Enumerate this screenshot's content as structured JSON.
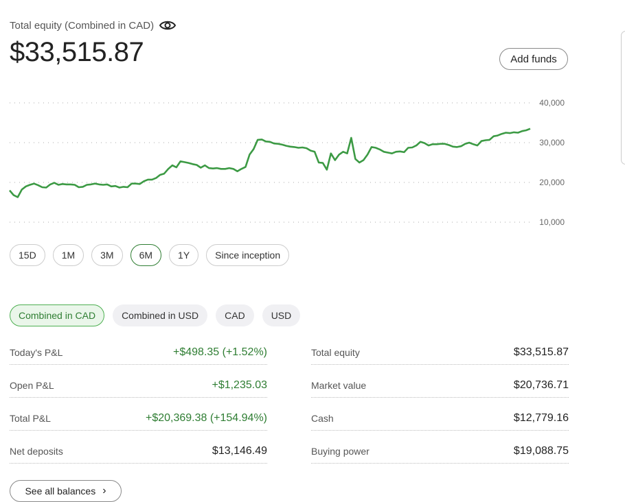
{
  "header": {
    "equity_label": "Total equity (Combined in CAD)",
    "equity_value": "$33,515.87",
    "eye_icon": "eye-icon",
    "add_funds_label": "Add funds"
  },
  "chart_data": {
    "type": "line",
    "series": [
      {
        "values": [
          18000,
          16800,
          16300,
          18200,
          19000,
          19400,
          19700,
          19300,
          18800,
          18700,
          19500,
          19900,
          19400,
          19600,
          19500,
          19500,
          19400,
          18800,
          18900,
          19400,
          19500,
          19700,
          19500,
          19400,
          19500,
          19000,
          19100,
          18700,
          18900,
          18800,
          19700,
          19700,
          19600,
          20300,
          20700,
          20700,
          21100,
          21900,
          22200,
          23400,
          24300,
          23800,
          25300,
          25100,
          24900,
          24600,
          24400,
          23700,
          24300,
          23600,
          23500,
          23600,
          23400,
          23400,
          23600,
          23400,
          22800,
          23400,
          23900,
          27000,
          28400,
          30700,
          30800,
          30300,
          30200,
          29800,
          29700,
          29500,
          29200,
          29000,
          28900,
          28700,
          28800,
          28600,
          28000,
          27700,
          25000,
          24900,
          23200,
          27300,
          25600,
          27000,
          27700,
          27300,
          31200,
          25900,
          25000,
          25600,
          27000,
          28900,
          28700,
          28300,
          27700,
          27500,
          27300,
          27700,
          27800,
          27600,
          28700,
          28800,
          29300,
          30200,
          29900,
          29300,
          29600,
          29600,
          29700,
          29700,
          29400,
          29000,
          28900,
          29100,
          29700,
          30000,
          29600,
          29300,
          30400,
          30600,
          30700,
          31600,
          31800,
          32200,
          32500,
          32400,
          32600,
          32500,
          32900,
          33100,
          33500
        ]
      }
    ],
    "yticks": [
      "40,000",
      "30,000",
      "20,000",
      "10,000"
    ],
    "ylim": [
      10000,
      40000
    ],
    "grid": true,
    "color": "#3c9a44"
  },
  "ranges": [
    "15D",
    "1M",
    "3M",
    "6M",
    "1Y",
    "Since inception"
  ],
  "active_range": "6M",
  "currencies": [
    "Combined in CAD",
    "Combined in USD",
    "CAD",
    "USD"
  ],
  "active_currency": "Combined in CAD",
  "left_stats": [
    {
      "label": "Today's P&L",
      "value": "+$498.35 (+1.52%)",
      "positive": true
    },
    {
      "label": "Open P&L",
      "value": "+$1,235.03",
      "positive": true
    },
    {
      "label": "Total P&L",
      "value": "+$20,369.38 (+154.94%)",
      "positive": true
    },
    {
      "label": "Net deposits",
      "value": "$13,146.49",
      "positive": false
    }
  ],
  "right_stats": [
    {
      "label": "Total equity",
      "value": "$33,515.87"
    },
    {
      "label": "Market value",
      "value": "$20,736.71"
    },
    {
      "label": "Cash",
      "value": "$12,779.16"
    },
    {
      "label": "Buying power",
      "value": "$19,088.75"
    }
  ],
  "see_all_label": "See all balances",
  "colors": {
    "accent_green": "#2e7d32",
    "line_green": "#3c9a44",
    "active_bg": "#eaf6ea"
  }
}
